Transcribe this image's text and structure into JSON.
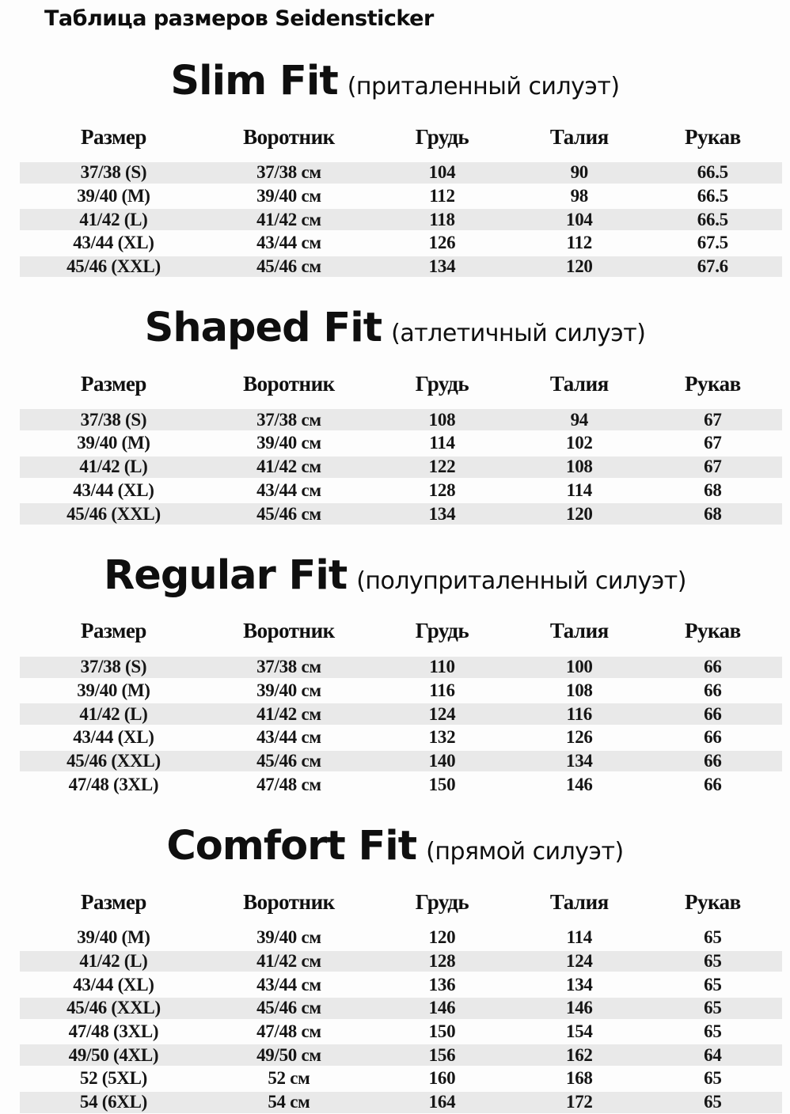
{
  "page_title": "Таблица размеров Seidensticker",
  "columns": [
    "Размер",
    "Воротник",
    "Грудь",
    "Талия",
    "Рукав"
  ],
  "colors": {
    "background": "#fdfdfd",
    "row_shade": "#e9e9e9",
    "text": "#141414"
  },
  "sections": [
    {
      "name": "Slim Fit",
      "subtitle": "(приталенный силуэт)",
      "first_row_shaded": true,
      "rows": [
        [
          "37/38 (S)",
          "37/38 см",
          "104",
          "90",
          "66.5"
        ],
        [
          "39/40 (M)",
          "39/40 см",
          "112",
          "98",
          "66.5"
        ],
        [
          "41/42 (L)",
          "41/42 см",
          "118",
          "104",
          "66.5"
        ],
        [
          "43/44 (XL)",
          "43/44 см",
          "126",
          "112",
          "67.5"
        ],
        [
          "45/46 (XXL)",
          "45/46 см",
          "134",
          "120",
          "67.6"
        ]
      ]
    },
    {
      "name": "Shaped Fit",
      "subtitle": "(атлетичный силуэт)",
      "first_row_shaded": true,
      "rows": [
        [
          "37/38 (S)",
          "37/38 см",
          "108",
          "94",
          "67"
        ],
        [
          "39/40 (M)",
          "39/40 см",
          "114",
          "102",
          "67"
        ],
        [
          "41/42 (L)",
          "41/42 см",
          "122",
          "108",
          "67"
        ],
        [
          "43/44 (XL)",
          "43/44 см",
          "128",
          "114",
          "68"
        ],
        [
          "45/46 (XXL)",
          "45/46 см",
          "134",
          "120",
          "68"
        ]
      ]
    },
    {
      "name": "Regular Fit",
      "subtitle": "(полуприталенный силуэт)",
      "first_row_shaded": true,
      "rows": [
        [
          "37/38 (S)",
          "37/38 см",
          "110",
          "100",
          "66"
        ],
        [
          "39/40 (M)",
          "39/40 см",
          "116",
          "108",
          "66"
        ],
        [
          "41/42 (L)",
          "41/42 см",
          "124",
          "116",
          "66"
        ],
        [
          "43/44 (XL)",
          "43/44 см",
          "132",
          "126",
          "66"
        ],
        [
          "45/46 (XXL)",
          "45/46 см",
          "140",
          "134",
          "66"
        ],
        [
          "47/48 (3XL)",
          "47/48 см",
          "150",
          "146",
          "66"
        ]
      ]
    },
    {
      "name": "Comfort Fit",
      "subtitle": "(прямой силуэт)",
      "first_row_shaded": false,
      "rows": [
        [
          "39/40 (M)",
          "39/40 см",
          "120",
          "114",
          "65"
        ],
        [
          "41/42 (L)",
          "41/42 см",
          "128",
          "124",
          "65"
        ],
        [
          "43/44 (XL)",
          "43/44 см",
          "136",
          "134",
          "65"
        ],
        [
          "45/46 (XXL)",
          "45/46 см",
          "146",
          "146",
          "65"
        ],
        [
          "47/48 (3XL)",
          "47/48 см",
          "150",
          "154",
          "65"
        ],
        [
          "49/50 (4XL)",
          "49/50 см",
          "156",
          "162",
          "64"
        ],
        [
          "52 (5XL)",
          "52 см",
          "160",
          "168",
          "65"
        ],
        [
          "54 (6XL)",
          "54 см",
          "164",
          "172",
          "65"
        ]
      ]
    }
  ]
}
